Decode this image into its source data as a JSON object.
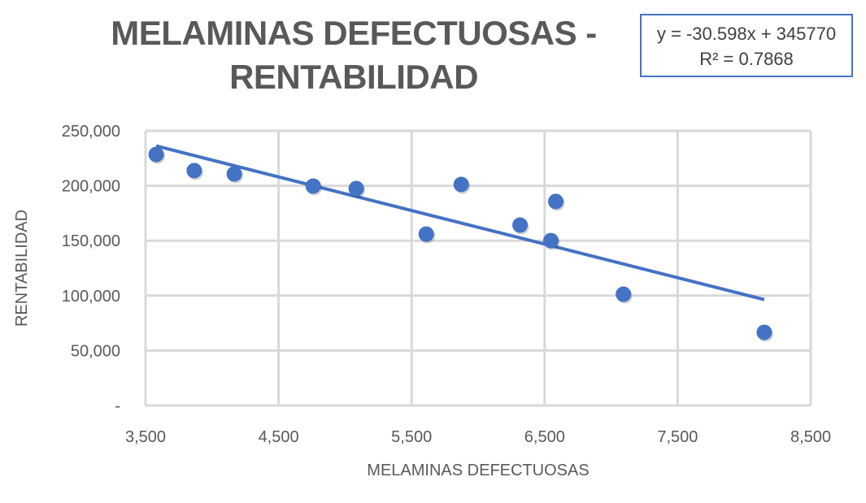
{
  "chart_data": {
    "type": "scatter",
    "title": "MELAMINAS DEFECTUOSAS - RENTABILIDAD",
    "xlabel": "MELAMINAS DEFECTUOSAS",
    "ylabel": "RENTABILIDAD",
    "xlim": [
      3500,
      8500
    ],
    "ylim": [
      0,
      250000
    ],
    "x_ticks": [
      "3,500",
      "4,500",
      "5,500",
      "6,500",
      "7,500",
      "8,500"
    ],
    "y_ticks": [
      "-",
      "50,000",
      "100,000",
      "150,000",
      "200,000",
      "250,000"
    ],
    "grid": true,
    "color": "#4472c4",
    "points": [
      {
        "x": 3580,
        "y": 228500
      },
      {
        "x": 3866,
        "y": 213800
      },
      {
        "x": 4167,
        "y": 210800
      },
      {
        "x": 4760,
        "y": 199700
      },
      {
        "x": 5084,
        "y": 197500
      },
      {
        "x": 5610,
        "y": 156000
      },
      {
        "x": 5873,
        "y": 201200
      },
      {
        "x": 6315,
        "y": 164200
      },
      {
        "x": 6547,
        "y": 150100
      },
      {
        "x": 6584,
        "y": 185700
      },
      {
        "x": 7092,
        "y": 101300
      },
      {
        "x": 8151,
        "y": 66600
      }
    ],
    "trendline": {
      "type": "linear",
      "slope": -30.598,
      "intercept": 345770,
      "equation": "y = -30.598x + 345770",
      "r_squared": "R² = 0.7868"
    }
  }
}
